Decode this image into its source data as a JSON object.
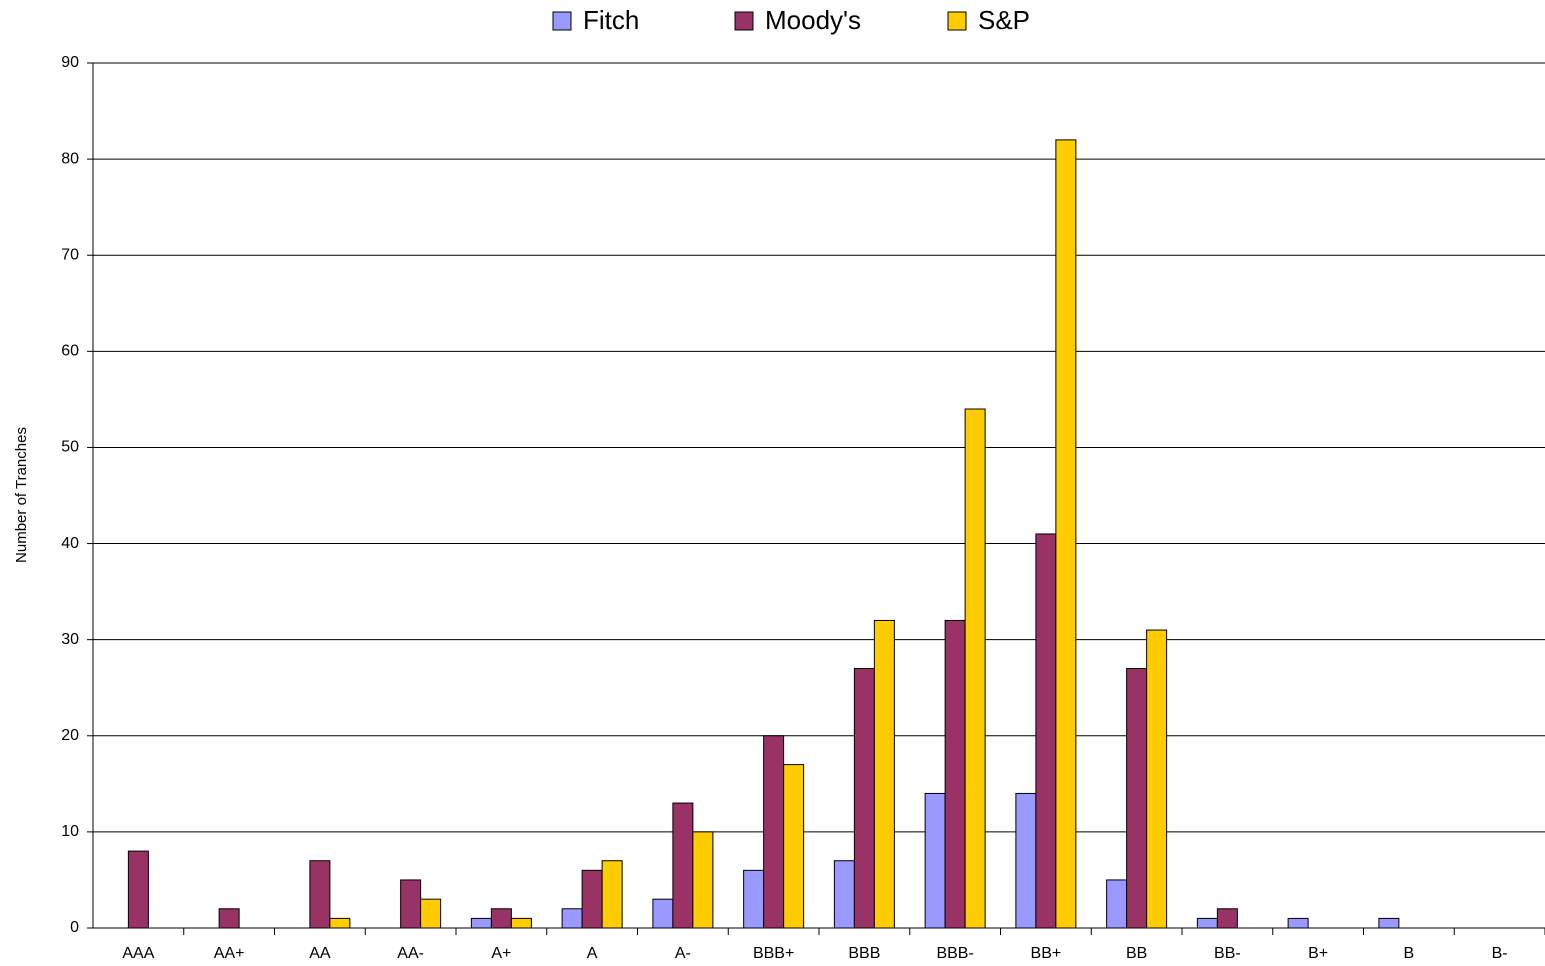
{
  "chart_data": {
    "type": "bar",
    "y_label": "Number of Tranches",
    "categories": [
      "AAA",
      "AA+",
      "AA",
      "AA-",
      "A+",
      "A",
      "A-",
      "BBB+",
      "BBB",
      "BBB-",
      "BB+",
      "BB",
      "BB-",
      "B+",
      "B",
      "B-"
    ],
    "series": [
      {
        "name": "Fitch",
        "color": "#9999ff",
        "values": [
          0,
          0,
          0,
          0,
          1,
          2,
          3,
          6,
          7,
          14,
          14,
          5,
          1,
          1,
          1,
          0
        ]
      },
      {
        "name": "Moody's",
        "color": "#993366",
        "values": [
          8,
          2,
          7,
          5,
          2,
          6,
          13,
          20,
          27,
          32,
          41,
          27,
          2,
          0,
          0,
          0
        ]
      },
      {
        "name": "S&P",
        "color": "#ffcc00",
        "values": [
          0,
          0,
          1,
          3,
          1,
          7,
          10,
          17,
          32,
          54,
          82,
          31,
          0,
          0,
          0,
          0
        ]
      }
    ],
    "ylim": [
      0,
      90
    ],
    "yticks": [
      0,
      10,
      20,
      30,
      40,
      50,
      60,
      70,
      80,
      90
    ],
    "grid": true,
    "legend": "top"
  }
}
